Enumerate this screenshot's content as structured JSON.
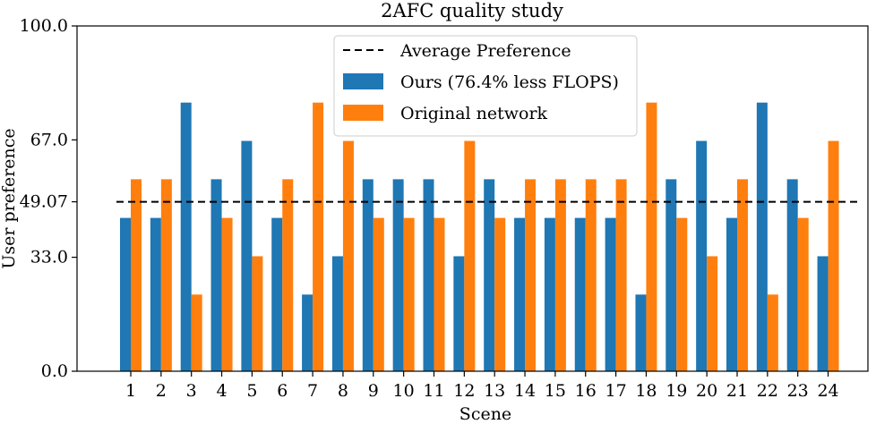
{
  "chart_data": {
    "type": "bar",
    "title": "2AFC quality study",
    "xlabel": "Scene",
    "ylabel": "User preference",
    "ylim": [
      0,
      100
    ],
    "yticks": [
      0.0,
      33.0,
      49.07,
      67.0,
      100.0
    ],
    "ytick_labels": [
      "0.0",
      "33.0",
      "49.07",
      "67.0",
      "100.0"
    ],
    "categories": [
      "1",
      "2",
      "3",
      "4",
      "5",
      "6",
      "7",
      "8",
      "9",
      "10",
      "11",
      "12",
      "13",
      "14",
      "15",
      "16",
      "17",
      "18",
      "19",
      "20",
      "21",
      "22",
      "23",
      "24"
    ],
    "series": [
      {
        "name": "Ours (76.4% less FLOPS)",
        "color": "#1f77b4",
        "values": [
          44.4,
          44.4,
          77.8,
          55.6,
          66.7,
          44.4,
          22.2,
          33.3,
          55.6,
          55.6,
          55.6,
          33.3,
          55.6,
          44.4,
          44.4,
          44.4,
          44.4,
          22.2,
          55.6,
          66.7,
          44.4,
          77.8,
          55.6,
          33.3
        ]
      },
      {
        "name": "Original network",
        "color": "#ff7f0e",
        "values": [
          55.6,
          55.6,
          22.2,
          44.4,
          33.3,
          55.6,
          77.8,
          66.7,
          44.4,
          44.4,
          44.4,
          66.7,
          44.4,
          55.6,
          55.6,
          55.6,
          55.6,
          77.8,
          44.4,
          33.3,
          55.6,
          22.2,
          44.4,
          66.7
        ]
      }
    ],
    "reference_line": {
      "name": "Average Preference",
      "value": 49.07,
      "style": "dashed",
      "color": "#000000"
    },
    "legend_position": "top-center",
    "grid": false
  }
}
